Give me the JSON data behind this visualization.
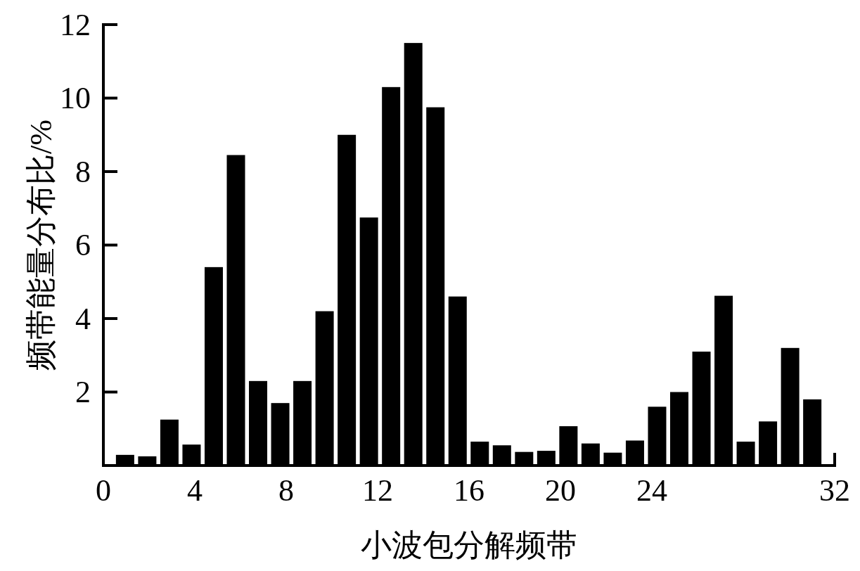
{
  "chart_data": {
    "type": "bar",
    "xlabel": "小波包分解频带",
    "ylabel": "频带能量分布比/%",
    "x": [
      0.95,
      1.92,
      2.89,
      3.86,
      4.83,
      5.8,
      6.77,
      7.74,
      8.71,
      9.68,
      10.65,
      11.62,
      12.59,
      13.56,
      14.53,
      15.5,
      16.47,
      17.44,
      18.41,
      19.38,
      20.35,
      21.32,
      22.29,
      23.26,
      24.23,
      25.2,
      26.17,
      27.14,
      28.11,
      29.08,
      30.05,
      31.02
    ],
    "values": [
      0.29,
      0.25,
      1.25,
      0.57,
      5.4,
      8.45,
      2.3,
      1.7,
      2.3,
      4.2,
      9.0,
      6.75,
      10.3,
      11.5,
      9.75,
      4.6,
      0.65,
      0.55,
      0.37,
      0.4,
      1.07,
      0.6,
      0.35,
      0.68,
      1.6,
      2.0,
      3.1,
      4.62,
      0.65,
      1.2,
      3.2,
      1.8
    ],
    "color": "#000000",
    "xlim": [
      0,
      32
    ],
    "xticks": [
      0,
      4,
      8,
      12,
      16,
      20,
      24,
      32
    ],
    "ylim": [
      0,
      12
    ],
    "yticks": [
      {
        "value": 0,
        "label": null
      },
      2,
      4,
      6,
      8,
      10,
      12
    ],
    "grid": false
  }
}
